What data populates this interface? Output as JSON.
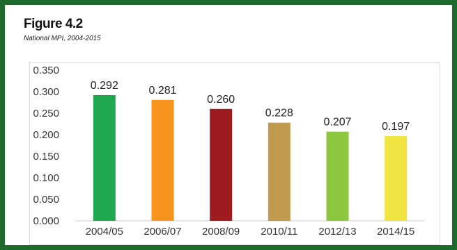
{
  "chart_data": {
    "type": "bar",
    "title": "Figure 4.2",
    "subtitle": "National MPI, 2004-2015",
    "categories": [
      "2004/05",
      "2006/07",
      "2008/09",
      "2010/11",
      "2012/13",
      "2014/15"
    ],
    "values": [
      0.292,
      0.281,
      0.26,
      0.228,
      0.207,
      0.197
    ],
    "value_labels": [
      "0.292",
      "0.281",
      "0.260",
      "0.228",
      "0.207",
      "0.197"
    ],
    "colors": [
      "#1fa84f",
      "#f7941d",
      "#9e1b20",
      "#c29a4f",
      "#8dc63f",
      "#f0e442"
    ],
    "ylim": [
      0,
      0.35
    ],
    "yticks": [
      "0.000",
      "0.050",
      "0.100",
      "0.150",
      "0.200",
      "0.250",
      "0.300",
      "0.350"
    ],
    "xlabel": "",
    "ylabel": "",
    "grid": false,
    "legend": "none"
  }
}
